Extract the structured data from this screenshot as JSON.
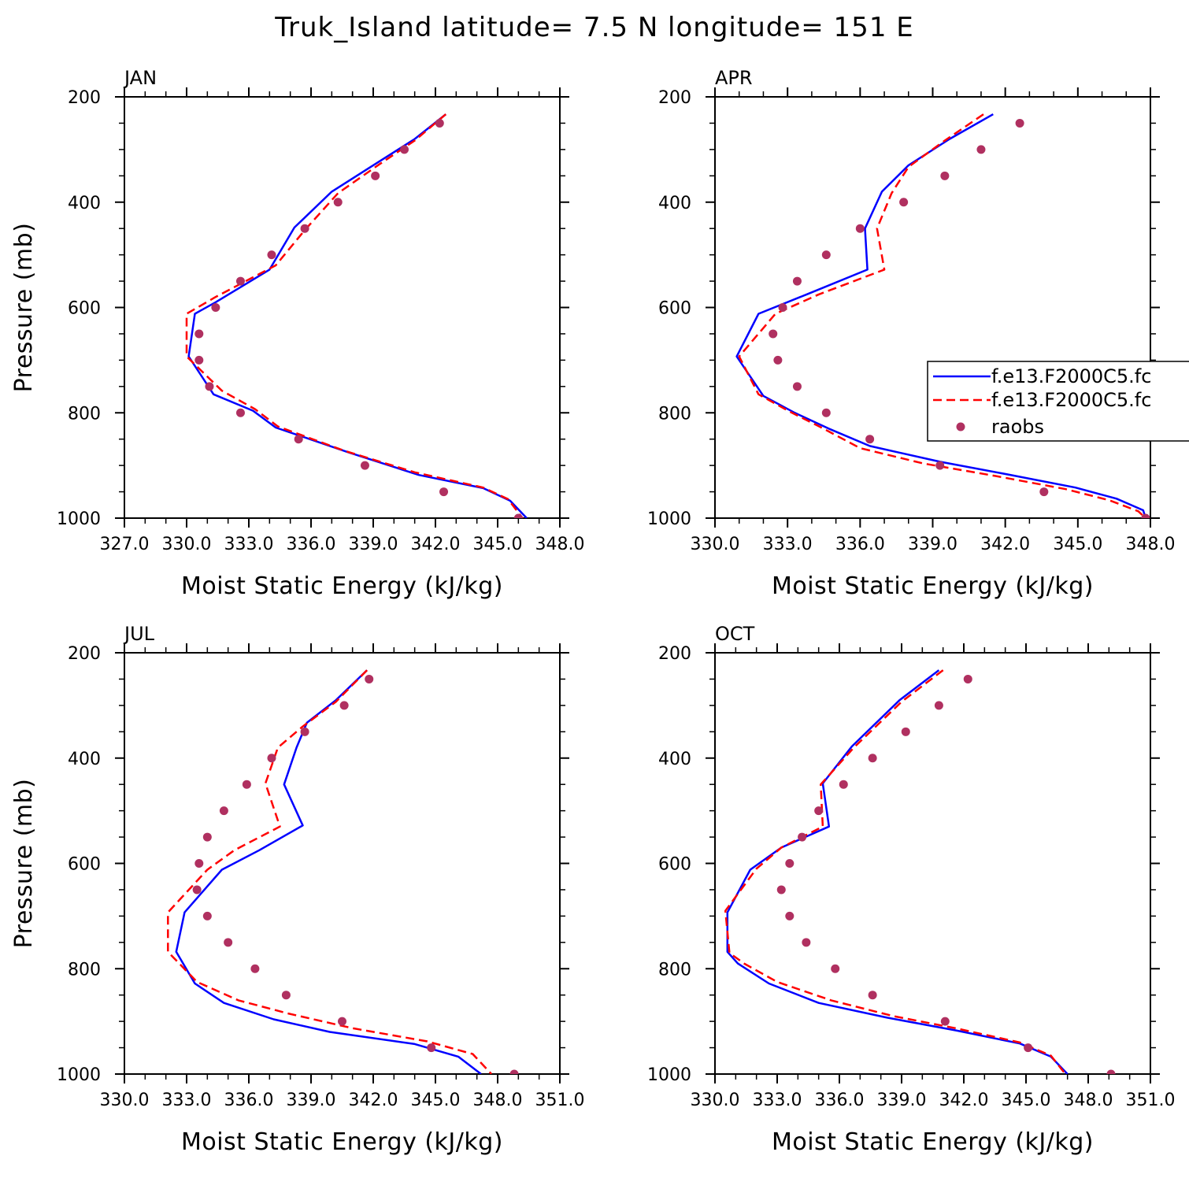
{
  "title": "Truk_Island  latitude= 7.5 N longitude= 151 E",
  "colors": {
    "model1": "#0000ff",
    "model2": "#ff0000",
    "raobs": "#b03060",
    "axes": "#000000",
    "background": "#ffffff"
  },
  "legend": {
    "entries": [
      "f.e13.F2000C5.fc",
      "f.e13.F2000C5.fc",
      "raobs"
    ],
    "placement": "APR panel, right edge"
  },
  "chart_data": [
    {
      "type": "line",
      "panel": "JAN",
      "xlabel": "Moist Static Energy (kJ/kg)",
      "ylabel": "Pressure (mb)",
      "xlim": [
        327.0,
        348.0
      ],
      "ylim": [
        1000,
        200
      ],
      "xticks": [
        327.0,
        330.0,
        333.0,
        336.0,
        339.0,
        342.0,
        345.0,
        348.0
      ],
      "xtick_labels": [
        "327.0",
        "330.0",
        "333.0",
        "336.0",
        "339.0",
        "342.0",
        "345.0",
        "348.0"
      ],
      "yticks": [
        200,
        400,
        600,
        800,
        1000
      ],
      "ytick_labels": [
        "200",
        "400",
        "600",
        "800",
        "1000"
      ],
      "grid": false,
      "series": [
        {
          "style": "solid",
          "color": "#0000ff",
          "x": [
            342.5,
            341.0,
            339.2,
            337.0,
            335.2,
            334.0,
            331.4,
            330.4,
            330.1,
            331.3,
            333.2,
            334.3,
            337.8,
            341.2,
            344.3,
            345.6,
            346.4
          ],
          "p": [
            233,
            280,
            325,
            380,
            448,
            528,
            590,
            612,
            693,
            765,
            796,
            828,
            875,
            918,
            943,
            967,
            1000
          ]
        },
        {
          "style": "dashed",
          "color": "#ff0000",
          "x": [
            342.5,
            341.0,
            339.3,
            337.3,
            335.7,
            334.3,
            331.4,
            330.0,
            330.0,
            331.7,
            333.3,
            334.4,
            337.6,
            341.0,
            344.3,
            345.5,
            346.2
          ],
          "p": [
            233,
            283,
            328,
            383,
            453,
            520,
            580,
            612,
            693,
            758,
            793,
            826,
            872,
            913,
            942,
            964,
            1000
          ]
        },
        {
          "style": "markers",
          "color": "#b03060",
          "x": [
            342.2,
            340.5,
            339.1,
            337.3,
            335.7,
            334.1,
            332.6,
            331.4,
            330.6,
            330.6,
            331.1,
            332.6,
            335.4,
            338.6,
            342.4,
            346.0
          ],
          "p": [
            250,
            300,
            350,
            400,
            450,
            500,
            550,
            600,
            650,
            700,
            750,
            800,
            850,
            900,
            950,
            1000
          ]
        }
      ]
    },
    {
      "type": "line",
      "panel": "APR",
      "xlabel": "Moist Static Energy (kJ/kg)",
      "ylabel": "",
      "xlim": [
        330.0,
        348.0
      ],
      "ylim": [
        1000,
        200
      ],
      "xticks": [
        330.0,
        333.0,
        336.0,
        339.0,
        342.0,
        345.0,
        348.0
      ],
      "xtick_labels": [
        "330.0",
        "333.0",
        "336.0",
        "339.0",
        "342.0",
        "345.0",
        "348.0"
      ],
      "yticks": [
        200,
        400,
        600,
        800,
        1000
      ],
      "ytick_labels": [
        "200",
        "400",
        "600",
        "800",
        "1000"
      ],
      "grid": false,
      "series": [
        {
          "style": "solid",
          "color": "#0000ff",
          "x": [
            341.5,
            339.7,
            338.0,
            336.9,
            336.2,
            336.3,
            333.8,
            331.8,
            330.9,
            332.0,
            333.3,
            334.7,
            336.4,
            339.3,
            342.1,
            344.9,
            346.6,
            347.7,
            347.8
          ],
          "p": [
            233,
            280,
            330,
            380,
            450,
            528,
            575,
            612,
            693,
            768,
            800,
            830,
            863,
            893,
            917,
            942,
            963,
            985,
            1000
          ]
        },
        {
          "style": "dashed",
          "color": "#ff0000",
          "x": [
            341.1,
            339.5,
            338.0,
            337.3,
            336.7,
            337.0,
            334.3,
            332.5,
            331.0,
            331.8,
            333.1,
            334.4,
            336.0,
            338.6,
            341.6,
            344.5,
            346.3,
            347.5,
            347.8
          ],
          "p": [
            233,
            283,
            333,
            383,
            450,
            528,
            575,
            612,
            693,
            765,
            798,
            828,
            867,
            896,
            920,
            945,
            966,
            987,
            1000
          ]
        },
        {
          "style": "markers",
          "color": "#b03060",
          "x": [
            342.6,
            341.0,
            339.5,
            337.8,
            336.0,
            334.6,
            333.4,
            332.8,
            332.4,
            332.6,
            333.4,
            334.6,
            336.4,
            339.3,
            343.6,
            347.8
          ],
          "p": [
            250,
            300,
            350,
            400,
            450,
            500,
            550,
            600,
            650,
            700,
            750,
            800,
            850,
            900,
            950,
            1000
          ]
        }
      ]
    },
    {
      "type": "line",
      "panel": "JUL",
      "xlabel": "Moist Static Energy (kJ/kg)",
      "ylabel": "Pressure (mb)",
      "xlim": [
        330.0,
        351.0
      ],
      "ylim": [
        1000,
        200
      ],
      "xticks": [
        330.0,
        333.0,
        336.0,
        339.0,
        342.0,
        345.0,
        348.0,
        351.0
      ],
      "xtick_labels": [
        "330.0",
        "333.0",
        "336.0",
        "339.0",
        "342.0",
        "345.0",
        "348.0",
        "351.0"
      ],
      "yticks": [
        200,
        400,
        600,
        800,
        1000
      ],
      "ytick_labels": [
        "200",
        "400",
        "600",
        "800",
        "1000"
      ],
      "grid": false,
      "series": [
        {
          "style": "solid",
          "color": "#0000ff",
          "x": [
            341.7,
            340.2,
            338.8,
            338.3,
            337.7,
            338.6,
            336.5,
            334.7,
            332.9,
            332.5,
            333.4,
            334.8,
            337.2,
            339.9,
            344.0,
            346.1,
            347.2
          ],
          "p": [
            233,
            290,
            333,
            380,
            450,
            528,
            575,
            612,
            693,
            768,
            828,
            865,
            896,
            920,
            943,
            967,
            1000
          ]
        },
        {
          "style": "dashed",
          "color": "#ff0000",
          "x": [
            341.7,
            340.2,
            338.6,
            337.4,
            336.8,
            337.5,
            335.3,
            334.0,
            332.1,
            332.1,
            333.5,
            335.5,
            337.9,
            341.0,
            344.6,
            346.8,
            347.7
          ],
          "p": [
            233,
            293,
            340,
            380,
            448,
            530,
            575,
            612,
            693,
            768,
            825,
            860,
            885,
            913,
            938,
            962,
            1000
          ]
        },
        {
          "style": "markers",
          "color": "#b03060",
          "x": [
            341.8,
            340.6,
            338.7,
            337.1,
            335.9,
            334.8,
            334.0,
            333.6,
            333.5,
            334.0,
            335.0,
            336.3,
            337.8,
            340.5,
            344.8,
            348.8
          ],
          "p": [
            250,
            300,
            350,
            400,
            450,
            500,
            550,
            600,
            650,
            700,
            750,
            800,
            850,
            900,
            950,
            1000
          ]
        }
      ]
    },
    {
      "type": "line",
      "panel": "OCT",
      "xlabel": "Moist Static Energy (kJ/kg)",
      "ylabel": "",
      "xlim": [
        330.0,
        351.0
      ],
      "ylim": [
        1000,
        200
      ],
      "xticks": [
        330.0,
        333.0,
        336.0,
        339.0,
        342.0,
        345.0,
        348.0,
        351.0
      ],
      "xtick_labels": [
        "330.0",
        "333.0",
        "336.0",
        "339.0",
        "342.0",
        "345.0",
        "348.0",
        "351.0"
      ],
      "yticks": [
        200,
        400,
        600,
        800,
        1000
      ],
      "ytick_labels": [
        "200",
        "400",
        "600",
        "800",
        "1000"
      ],
      "grid": false,
      "series": [
        {
          "style": "solid",
          "color": "#0000ff",
          "x": [
            340.8,
            338.9,
            336.6,
            335.2,
            335.5,
            333.2,
            331.7,
            330.6,
            330.6,
            331.1,
            332.6,
            335.0,
            338.3,
            341.6,
            344.7,
            346.2,
            347.0
          ],
          "p": [
            233,
            290,
            378,
            448,
            530,
            570,
            612,
            693,
            768,
            790,
            828,
            865,
            893,
            917,
            942,
            967,
            1000
          ]
        },
        {
          "style": "dashed",
          "color": "#ff0000",
          "x": [
            341.0,
            339.0,
            336.7,
            335.1,
            335.2,
            333.2,
            332.0,
            330.5,
            330.7,
            331.4,
            333.0,
            335.6,
            338.6,
            341.6,
            344.7,
            346.2,
            346.9
          ],
          "p": [
            233,
            293,
            380,
            450,
            530,
            570,
            610,
            690,
            770,
            790,
            825,
            860,
            890,
            913,
            940,
            965,
            1000
          ]
        },
        {
          "style": "markers",
          "color": "#b03060",
          "x": [
            342.2,
            340.8,
            339.2,
            337.6,
            336.2,
            335.0,
            334.2,
            333.6,
            333.2,
            333.6,
            334.4,
            335.8,
            337.6,
            341.1,
            345.1,
            349.1
          ],
          "p": [
            250,
            300,
            350,
            400,
            450,
            500,
            550,
            600,
            650,
            700,
            750,
            800,
            850,
            900,
            950,
            1000
          ]
        }
      ]
    }
  ]
}
